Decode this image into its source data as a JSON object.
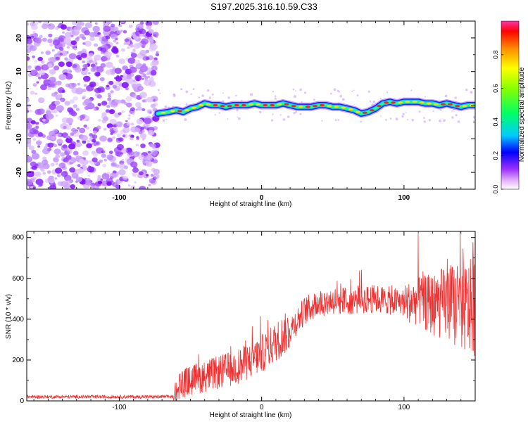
{
  "title": "S197.2025.316.10.59.C33",
  "colors": {
    "trace": "#f03030",
    "frame": "#000000",
    "scatter": "#8a2be2"
  },
  "chart_data": [
    {
      "type": "heatmap",
      "title": "S197.2025.316.10.59.C33",
      "xlabel": "Height of straight line (km)",
      "ylabel": "Frequency (Hz)",
      "xlim": [
        -165,
        150
      ],
      "ylim": [
        -25,
        25
      ],
      "xticks": [
        -100,
        0,
        100
      ],
      "xtick_labels": [
        "-100",
        "0",
        "100"
      ],
      "yticks": [
        20,
        10,
        0,
        -10,
        -20
      ],
      "ytick_labels": [
        "20",
        "10",
        "0",
        "-10",
        "-20"
      ],
      "colorbar": {
        "label": "Normalized spectral amplitude",
        "range": [
          0,
          1
        ],
        "ticks": [
          0.0,
          0.2,
          0.4,
          0.6,
          0.8
        ],
        "tick_labels": [
          "0.0",
          "0.2",
          "0.4",
          "0.6",
          "0.8"
        ]
      },
      "noise_region_x": [
        -165,
        -73
      ],
      "ridge": {
        "x": [
          -73,
          -65,
          -60,
          -55,
          -50,
          -45,
          -40,
          -35,
          -30,
          -25,
          -20,
          -15,
          -10,
          -5,
          0,
          5,
          10,
          15,
          20,
          25,
          30,
          35,
          40,
          45,
          50,
          55,
          60,
          65,
          70,
          75,
          80,
          85,
          90,
          95,
          100,
          105,
          110,
          115,
          120,
          125,
          130,
          135,
          140,
          145,
          150
        ],
        "y": [
          -2.5,
          -2,
          -1.5,
          -2,
          -1,
          -0.5,
          0.5,
          0,
          0,
          -0.5,
          0,
          0,
          0,
          0.5,
          0,
          0,
          0,
          0.5,
          0,
          -0.5,
          -0.5,
          -0.5,
          0,
          0,
          -0.5,
          -0.5,
          -1,
          -1.5,
          -2.5,
          -2,
          -1,
          0.5,
          1,
          0.5,
          1,
          1,
          1,
          0.5,
          0.5,
          0,
          0.5,
          0,
          -0.5,
          0,
          0
        ]
      }
    },
    {
      "type": "line",
      "xlabel": "Height of straight line (km)",
      "ylabel": "SNR (10 * v/v)",
      "xlim": [
        -165,
        150
      ],
      "ylim": [
        0,
        830
      ],
      "xticks": [
        -100,
        0,
        100
      ],
      "xtick_labels": [
        "-100",
        "0",
        "100"
      ],
      "yticks": [
        0,
        200,
        400,
        600,
        800
      ],
      "ytick_labels": [
        "0",
        "200",
        "400",
        "600",
        "800"
      ],
      "series": [
        {
          "name": "SNR",
          "x": [
            -165,
            -140,
            -120,
            -100,
            -80,
            -70,
            -62,
            -58,
            -50,
            -40,
            -30,
            -20,
            -10,
            0,
            10,
            20,
            30,
            40,
            50,
            60,
            70,
            80,
            90,
            100,
            110,
            120,
            130,
            140,
            145,
            150
          ],
          "y": [
            20,
            20,
            20,
            20,
            20,
            20,
            22,
            80,
            100,
            120,
            140,
            160,
            190,
            230,
            290,
            350,
            440,
            480,
            490,
            490,
            495,
            500,
            490,
            480,
            490,
            470,
            480,
            460,
            450,
            470
          ]
        }
      ]
    }
  ]
}
